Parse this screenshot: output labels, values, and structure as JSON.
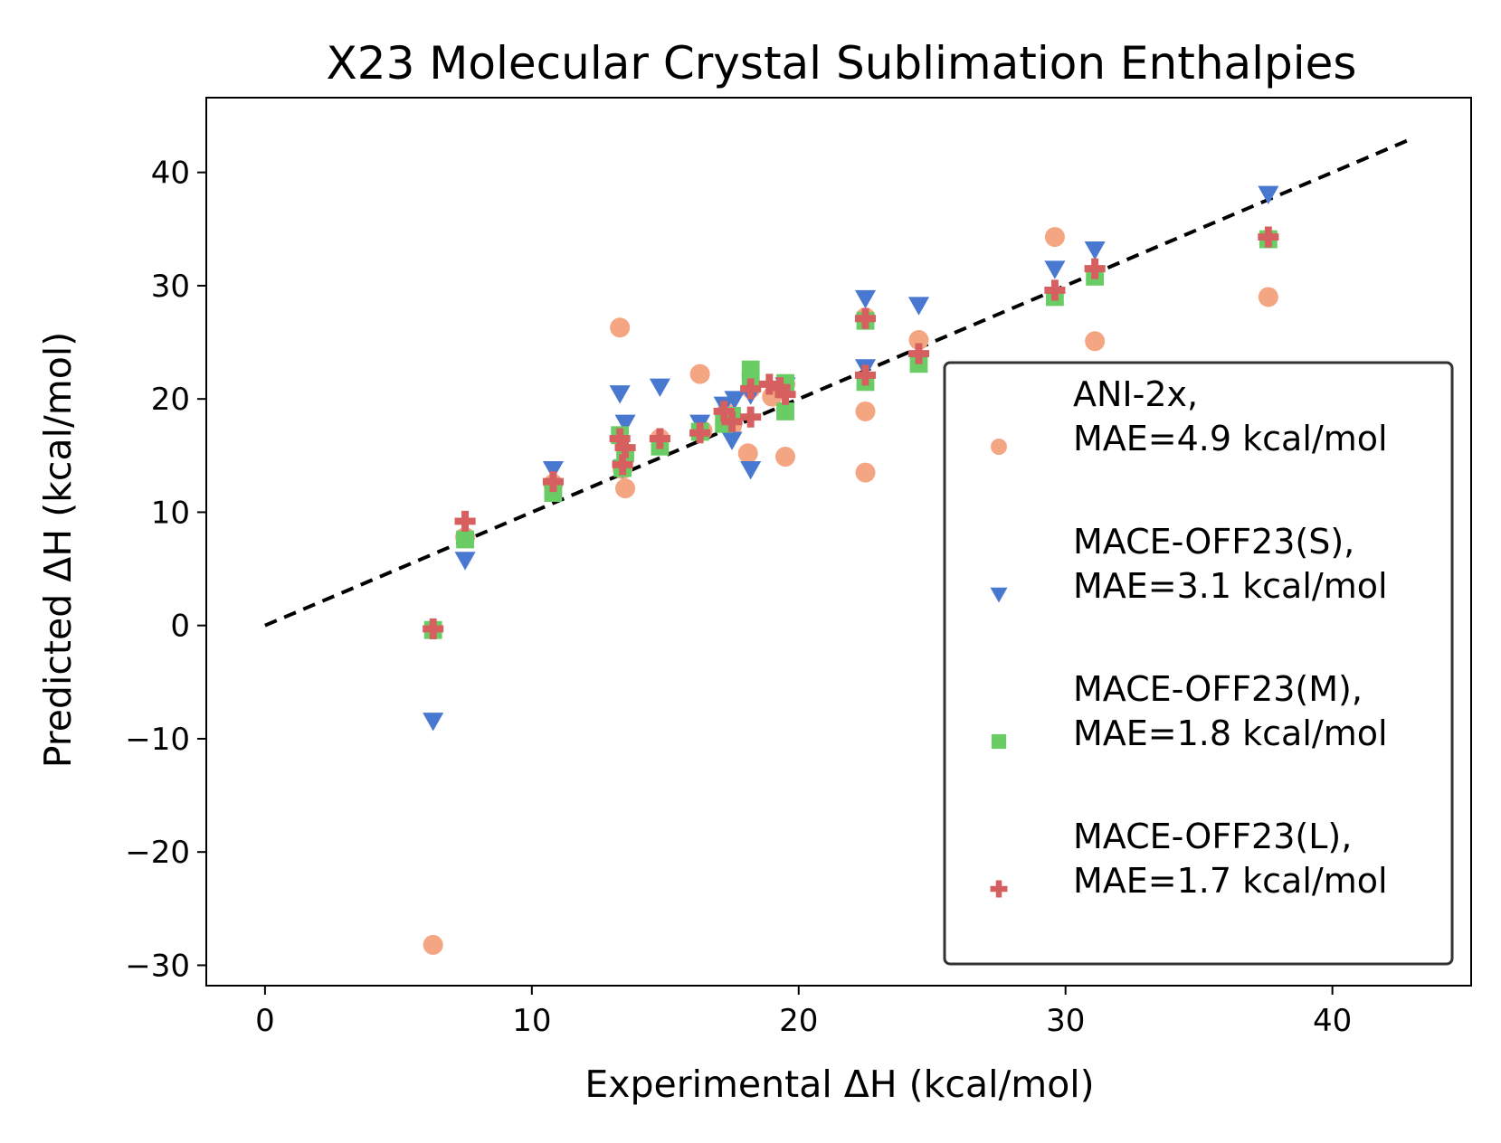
{
  "chart_data": {
    "type": "scatter",
    "title": "X23 Molecular Crystal Sublimation Enthalpies",
    "xlabel": "Experimental ΔH (kcal/mol)",
    "ylabel": "Predicted ΔH (kcal/mol)",
    "xlim": [
      -2.2,
      45.2
    ],
    "ylim": [
      -31.8,
      46.6
    ],
    "xticks": [
      0,
      10,
      20,
      30,
      40
    ],
    "yticks": [
      -30,
      -20,
      -10,
      0,
      10,
      20,
      30,
      40
    ],
    "xtick_labels": [
      "0",
      "10",
      "20",
      "30",
      "40"
    ],
    "ytick_labels": [
      "−30",
      "−20",
      "−10",
      "0",
      "10",
      "20",
      "30",
      "40"
    ],
    "grid": false,
    "legend_position": "lower-right",
    "reference_line": {
      "x": [
        0,
        43
      ],
      "y": [
        0,
        43
      ],
      "style": "dashed",
      "color": "#000000"
    },
    "series": [
      {
        "name": "ANI-2x,",
        "name_line2": "MAE=4.9 kcal/mol",
        "marker": "circle",
        "color": "#f4a582",
        "points": [
          [
            6.3,
            -28.2
          ],
          [
            7.5,
            7.8
          ],
          [
            10.8,
            12.5
          ],
          [
            13.3,
            26.3
          ],
          [
            13.5,
            12.1
          ],
          [
            13.4,
            13.8
          ],
          [
            14.8,
            16.5
          ],
          [
            16.3,
            22.2
          ],
          [
            16.4,
            17.2
          ],
          [
            17.3,
            18.9
          ],
          [
            17.5,
            17.6
          ],
          [
            18.1,
            15.2
          ],
          [
            18.2,
            20.9
          ],
          [
            19.0,
            20.2
          ],
          [
            19.5,
            21.3
          ],
          [
            19.5,
            14.9
          ],
          [
            22.5,
            18.9
          ],
          [
            22.5,
            13.5
          ],
          [
            22.5,
            27.2
          ],
          [
            24.5,
            25.2
          ],
          [
            29.6,
            34.3
          ],
          [
            31.1,
            25.1
          ],
          [
            37.6,
            29.0
          ]
        ]
      },
      {
        "name": "MACE-OFF23(S),",
        "name_line2": "MAE=3.1 kcal/mol",
        "marker": "triangle-down",
        "color": "#4878d0",
        "points": [
          [
            6.3,
            -8.4
          ],
          [
            7.5,
            5.8
          ],
          [
            10.8,
            13.8
          ],
          [
            13.3,
            20.5
          ],
          [
            13.5,
            17.9
          ],
          [
            13.4,
            13.9
          ],
          [
            14.8,
            21.1
          ],
          [
            16.3,
            17.9
          ],
          [
            17.2,
            19.5
          ],
          [
            17.5,
            16.4
          ],
          [
            17.6,
            20.0
          ],
          [
            18.2,
            13.8
          ],
          [
            18.2,
            20.4
          ],
          [
            19.5,
            21.2
          ],
          [
            22.5,
            28.9
          ],
          [
            22.5,
            22.8
          ],
          [
            24.5,
            28.3
          ],
          [
            29.6,
            31.5
          ],
          [
            31.1,
            33.2
          ],
          [
            37.6,
            38.1
          ]
        ]
      },
      {
        "name": "MACE-OFF23(M),",
        "name_line2": "MAE=1.8 kcal/mol",
        "marker": "square",
        "color": "#6acc64",
        "points": [
          [
            6.3,
            -0.4
          ],
          [
            7.5,
            7.6
          ],
          [
            10.8,
            11.7
          ],
          [
            13.3,
            16.8
          ],
          [
            13.5,
            15.2
          ],
          [
            13.4,
            13.9
          ],
          [
            14.8,
            15.8
          ],
          [
            16.3,
            17.1
          ],
          [
            17.2,
            17.8
          ],
          [
            17.5,
            18.5
          ],
          [
            18.2,
            22.6
          ],
          [
            18.2,
            21.5
          ],
          [
            19.5,
            21.4
          ],
          [
            19.5,
            18.9
          ],
          [
            22.5,
            26.9
          ],
          [
            22.5,
            21.5
          ],
          [
            24.5,
            23.1
          ],
          [
            29.6,
            29.0
          ],
          [
            31.1,
            30.8
          ],
          [
            37.6,
            34.1
          ]
        ]
      },
      {
        "name": "MACE-OFF23(L),",
        "name_line2": "MAE=1.7 kcal/mol",
        "marker": "plus",
        "color": "#d65f5f",
        "points": [
          [
            6.3,
            -0.3
          ],
          [
            7.5,
            9.2
          ],
          [
            10.8,
            12.7
          ],
          [
            13.3,
            16.5
          ],
          [
            13.5,
            15.7
          ],
          [
            13.4,
            14.2
          ],
          [
            14.8,
            16.5
          ],
          [
            16.3,
            17.0
          ],
          [
            17.2,
            18.9
          ],
          [
            17.5,
            18.0
          ],
          [
            18.2,
            20.9
          ],
          [
            18.2,
            18.4
          ],
          [
            18.9,
            21.3
          ],
          [
            19.5,
            20.4
          ],
          [
            19.3,
            21.0
          ],
          [
            22.5,
            27.1
          ],
          [
            22.5,
            22.1
          ],
          [
            24.5,
            24.0
          ],
          [
            29.6,
            29.6
          ],
          [
            31.1,
            31.5
          ],
          [
            37.6,
            34.3
          ]
        ]
      }
    ]
  }
}
